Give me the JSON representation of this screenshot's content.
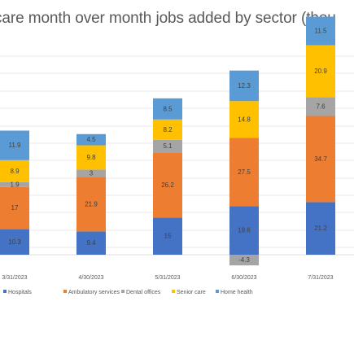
{
  "chart_data": {
    "type": "bar",
    "stacked": true,
    "title": "care month over month jobs added by sector (thou",
    "categories": [
      "3/31/2023",
      "4/30/2023",
      "5/31/2023",
      "6/30/2023",
      "7/31/2023"
    ],
    "series": [
      {
        "name": "Hospitals",
        "color": "#4472C4",
        "values": [
          10.3,
          9.4,
          15,
          19.6,
          21.2
        ]
      },
      {
        "name": "Ambulatory services",
        "color": "#ED7D31",
        "values": [
          17,
          21.9,
          26.2,
          27.5,
          34.7
        ]
      },
      {
        "name": "Dental offices",
        "color": "#A5A5A5",
        "values": [
          1.9,
          3,
          5.1,
          -4.3,
          7.6
        ]
      },
      {
        "name": "Senior care",
        "color": "#FFC000",
        "values": [
          8.9,
          9.8,
          8.2,
          14.8,
          20.9
        ]
      },
      {
        "name": "Home health",
        "color": "#5B9BD5",
        "values": [
          11.9,
          4.5,
          8.5,
          12.3,
          11.5
        ]
      }
    ],
    "data_labels": [
      [
        "10.3",
        "9.4",
        "15",
        "19.6",
        "21.2"
      ],
      [
        "17",
        "21.9",
        "26.2",
        "27.5",
        "34.7"
      ],
      [
        "1.9",
        "3",
        "5.1",
        "-4.3",
        "7.6"
      ],
      [
        "8.9",
        "9.8",
        "8.2",
        "14.8",
        "20.9"
      ],
      [
        "11.9",
        "4.5",
        "8.5",
        "12.3",
        "11.5"
      ]
    ],
    "legend_position": "bottom",
    "grid": true
  }
}
